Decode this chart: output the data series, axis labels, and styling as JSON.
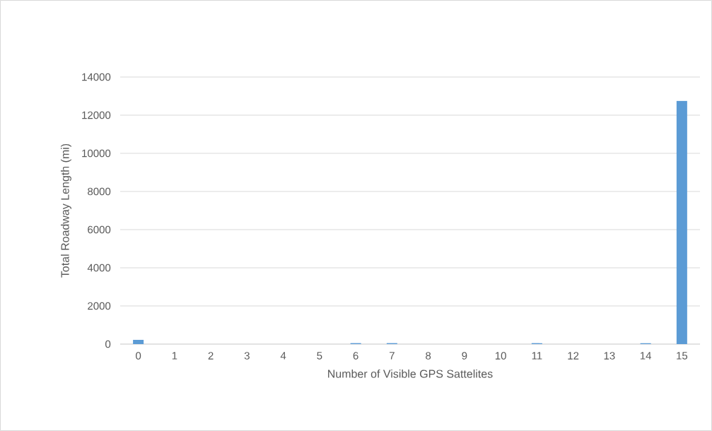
{
  "chart_data": {
    "type": "bar",
    "xlabel": "Number of Visible GPS Sattelites",
    "ylabel": "Total Roadway Length (mi)",
    "categories": [
      "0",
      "1",
      "2",
      "3",
      "4",
      "5",
      "6",
      "7",
      "8",
      "9",
      "10",
      "11",
      "12",
      "13",
      "14",
      "15"
    ],
    "values": [
      220,
      0,
      0,
      0,
      0,
      0,
      50,
      50,
      0,
      0,
      0,
      50,
      0,
      0,
      50,
      12750
    ],
    "color": "#5b9bd5",
    "ylim": [
      0,
      14000
    ],
    "yticks": [
      0,
      2000,
      4000,
      6000,
      8000,
      10000,
      12000,
      14000
    ],
    "grid": "y"
  }
}
